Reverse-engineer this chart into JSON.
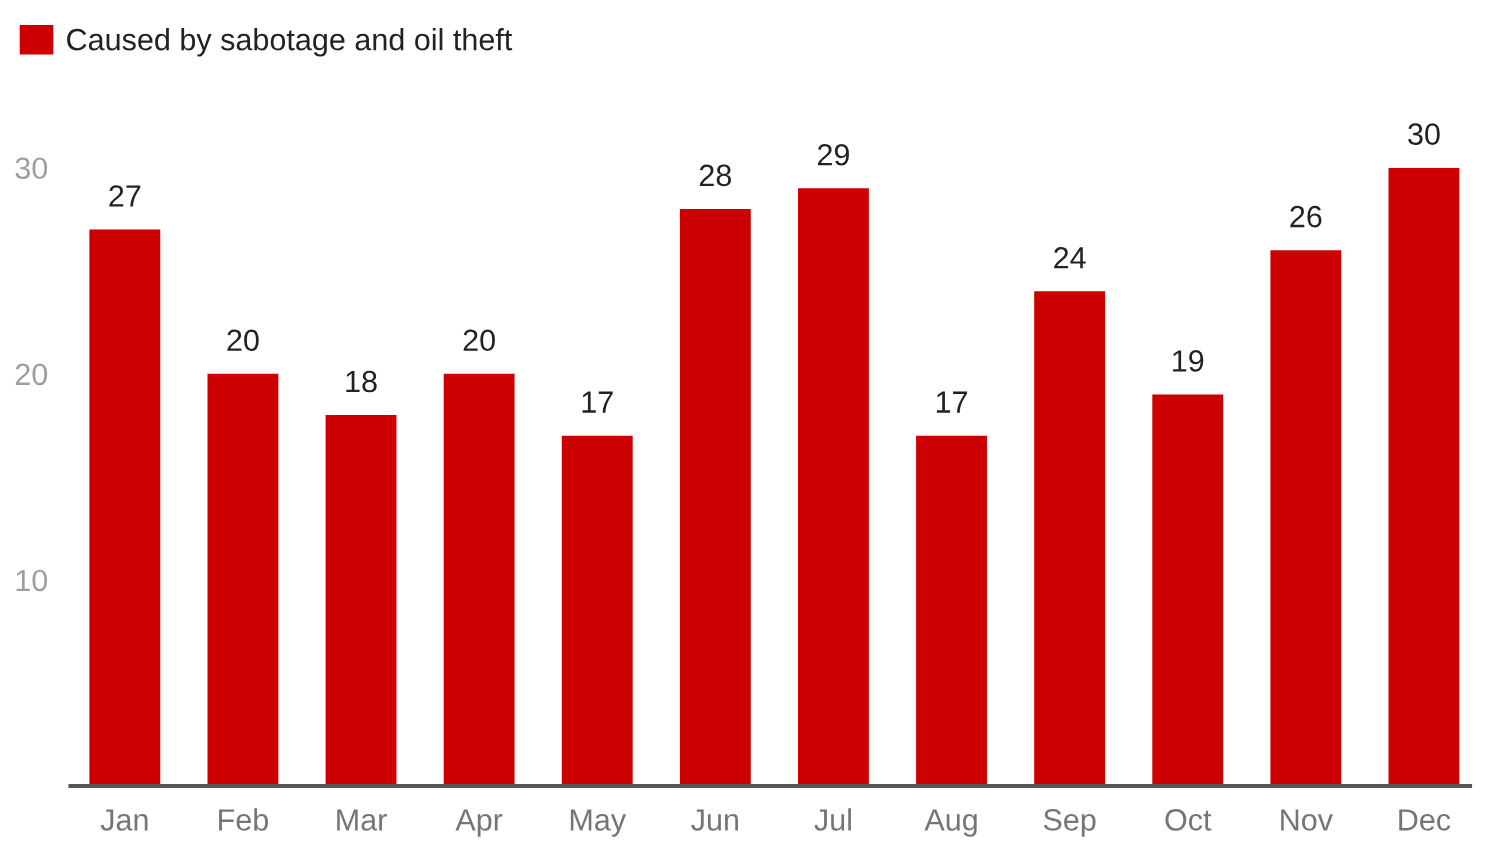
{
  "chart_data": {
    "type": "bar",
    "categories": [
      "Jan",
      "Feb",
      "Mar",
      "Apr",
      "May",
      "Jun",
      "Jul",
      "Aug",
      "Sep",
      "Oct",
      "Nov",
      "Dec"
    ],
    "series": [
      {
        "name": "Caused by sabotage and oil theft",
        "color": "#cc0000",
        "values": [
          27,
          20,
          18,
          20,
          17,
          28,
          29,
          17,
          24,
          19,
          26,
          30
        ]
      }
    ],
    "ylim": [
      0,
      30
    ],
    "yticks": [
      10,
      20,
      30
    ],
    "data_labels": true,
    "grid": false,
    "legend": "top left"
  }
}
